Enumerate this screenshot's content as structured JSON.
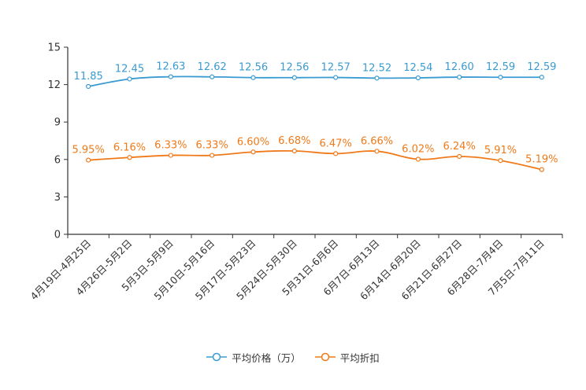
{
  "chart_data": {
    "type": "line",
    "title": "",
    "xlabel": "",
    "ylabel": "",
    "ylim": [
      0,
      15
    ],
    "yticks": [
      0,
      3,
      6,
      9,
      12,
      15
    ],
    "categories": [
      "4月19日-4月25日",
      "4月26日-5月2日",
      "5月3日-5月9日",
      "5月10日-5月16日",
      "5月17日-5月23日",
      "5月24日-5月30日",
      "5月31日-6月6日",
      "6月7日-6月13日",
      "6月14日-6月20日",
      "6月21日-6月27日",
      "6月28日-7月4日",
      "7月5日-7月11日"
    ],
    "series": [
      {
        "name": "平均价格（万）",
        "color": "#3a9bd0",
        "values": [
          11.85,
          12.45,
          12.63,
          12.62,
          12.56,
          12.56,
          12.57,
          12.52,
          12.54,
          12.6,
          12.59,
          12.59
        ],
        "labels": [
          "11.85",
          "12.45",
          "12.63",
          "12.62",
          "12.56",
          "12.56",
          "12.57",
          "12.52",
          "12.54",
          "12.60",
          "12.59",
          "12.59"
        ]
      },
      {
        "name": "平均折扣",
        "color": "#f07a19",
        "values": [
          5.95,
          6.16,
          6.33,
          6.33,
          6.6,
          6.68,
          6.47,
          6.66,
          6.02,
          6.24,
          5.91,
          5.19
        ],
        "labels": [
          "5.95%",
          "6.16%",
          "6.33%",
          "6.33%",
          "6.60%",
          "6.68%",
          "6.47%",
          "6.66%",
          "6.02%",
          "6.24%",
          "5.91%",
          "5.19%"
        ]
      }
    ],
    "legend": {
      "position": "bottom-center"
    }
  }
}
